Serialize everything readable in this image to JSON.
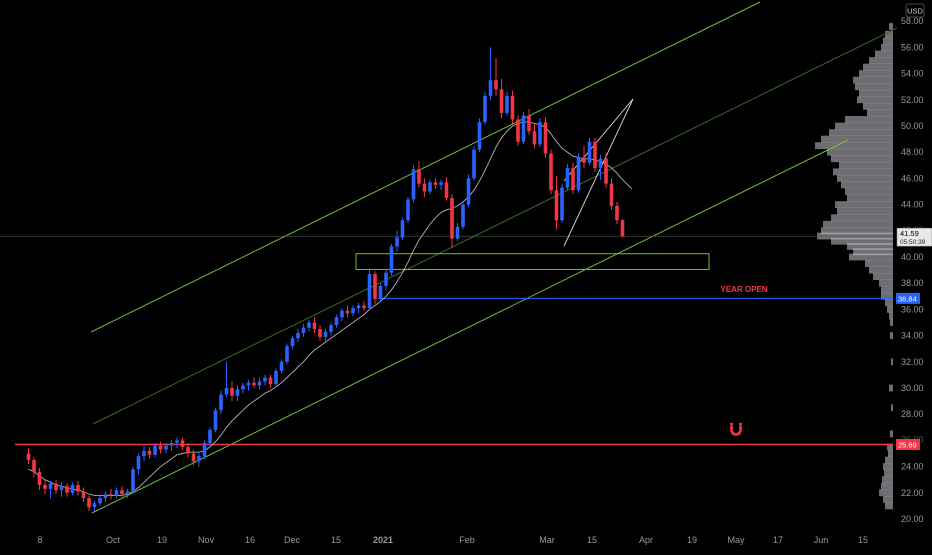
{
  "currency_label": "USD",
  "colors": {
    "background": "#000000",
    "up_candle": "#2962ff",
    "down_candle": "#f23645",
    "channel": "#6fbf3a",
    "midline": "#3b6b2a",
    "wedge": "#d9d9d9",
    "ma": "#d0d0d0",
    "year_open": "#2962ff",
    "support": "#f23645",
    "zone": "#6fbf3a",
    "volume_profile": "#c8c8d0",
    "axis_text": "#9598a1"
  },
  "price_axis": {
    "ticks": [
      "58.00",
      "56.00",
      "54.00",
      "52.00",
      "50.00",
      "48.00",
      "46.00",
      "44.00",
      "40.00",
      "38.00",
      "36.00",
      "34.00",
      "32.00",
      "30.00",
      "28.00",
      "24.00",
      "22.00",
      "20.00"
    ],
    "current_price": "41.59",
    "countdown": "05:50:39",
    "year_open_price": "36.84",
    "support_price": "25.69",
    "partial_tick_1": "42.00",
    "partial_tick_2": "26.00"
  },
  "time_axis": [
    "8",
    "Oct",
    "19",
    "Nov",
    "16",
    "Dec",
    "15",
    "2021",
    "Feb",
    "Mar",
    "15",
    "Apr",
    "19",
    "May",
    "17",
    "Jun",
    "15"
  ],
  "annotations": {
    "year_open_label": "YEAR OPEN"
  },
  "chart_data": {
    "type": "candlestick",
    "ylim": [
      19.5,
      59
    ],
    "series": [
      {
        "values": [
          [
            25.0,
            25.4,
            24.2,
            24.5
          ],
          [
            24.5,
            24.7,
            23.2,
            23.6
          ],
          [
            23.6,
            23.9,
            22.2,
            22.6
          ],
          [
            22.6,
            23.0,
            21.9,
            22.3
          ],
          [
            22.3,
            22.9,
            21.6,
            22.7
          ],
          [
            22.7,
            23.0,
            21.9,
            22.2
          ],
          [
            22.2,
            22.8,
            21.7,
            22.5
          ],
          [
            22.5,
            22.7,
            21.7,
            22.0
          ],
          [
            22.0,
            22.8,
            21.8,
            22.6
          ],
          [
            22.6,
            22.9,
            21.8,
            22.1
          ],
          [
            22.1,
            22.4,
            21.3,
            21.6
          ],
          [
            21.6,
            21.8,
            20.6,
            20.9
          ],
          [
            20.9,
            21.4,
            20.6,
            21.2
          ],
          [
            21.2,
            21.8,
            21.0,
            21.6
          ],
          [
            21.6,
            22.1,
            21.3,
            21.9
          ],
          [
            21.9,
            22.3,
            21.5,
            21.8
          ],
          [
            21.8,
            22.4,
            21.6,
            22.2
          ],
          [
            22.2,
            22.5,
            21.7,
            21.9
          ],
          [
            21.9,
            22.3,
            21.6,
            22.1
          ],
          [
            22.1,
            24.0,
            22.0,
            23.8
          ],
          [
            23.8,
            25.0,
            23.4,
            24.8
          ],
          [
            24.8,
            25.6,
            24.4,
            25.2
          ],
          [
            25.2,
            25.5,
            24.6,
            24.9
          ],
          [
            24.9,
            25.8,
            24.7,
            25.6
          ],
          [
            25.6,
            25.9,
            25.0,
            25.3
          ],
          [
            25.3,
            25.8,
            25.0,
            25.6
          ],
          [
            25.6,
            26.0,
            25.2,
            25.8
          ],
          [
            25.8,
            26.2,
            25.4,
            26.0
          ],
          [
            26.0,
            26.2,
            25.3,
            25.5
          ],
          [
            25.5,
            25.8,
            24.7,
            25.0
          ],
          [
            25.0,
            25.3,
            24.1,
            24.4
          ],
          [
            24.4,
            25.0,
            24.0,
            24.8
          ],
          [
            24.8,
            26.0,
            24.6,
            25.8
          ],
          [
            25.8,
            27.0,
            25.6,
            26.8
          ],
          [
            26.8,
            28.5,
            26.6,
            28.3
          ],
          [
            28.3,
            29.8,
            28.0,
            29.5
          ],
          [
            29.5,
            32.0,
            29.3,
            30.0
          ],
          [
            30.0,
            30.5,
            29.0,
            29.4
          ],
          [
            29.4,
            30.2,
            29.0,
            29.9
          ],
          [
            29.9,
            30.4,
            29.6,
            30.2
          ],
          [
            30.2,
            30.6,
            29.8,
            30.4
          ],
          [
            30.4,
            30.8,
            30.0,
            30.2
          ],
          [
            30.2,
            30.8,
            29.9,
            30.5
          ],
          [
            30.5,
            31.0,
            30.2,
            30.8
          ],
          [
            30.8,
            31.0,
            30.0,
            30.3
          ],
          [
            30.3,
            31.5,
            30.1,
            31.3
          ],
          [
            31.3,
            32.2,
            31.1,
            32.0
          ],
          [
            32.0,
            33.4,
            31.8,
            33.2
          ],
          [
            33.2,
            34.0,
            33.0,
            33.8
          ],
          [
            33.8,
            34.5,
            33.5,
            34.2
          ],
          [
            34.2,
            34.9,
            33.9,
            34.6
          ],
          [
            34.6,
            35.2,
            34.3,
            35.0
          ],
          [
            35.0,
            35.4,
            34.2,
            34.5
          ],
          [
            34.5,
            34.8,
            33.6,
            33.9
          ],
          [
            33.9,
            34.5,
            33.6,
            34.3
          ],
          [
            34.3,
            35.0,
            34.0,
            34.8
          ],
          [
            34.8,
            35.6,
            34.6,
            35.4
          ],
          [
            35.4,
            36.1,
            35.1,
            35.9
          ],
          [
            35.9,
            36.3,
            35.4,
            35.7
          ],
          [
            35.7,
            36.3,
            35.5,
            36.1
          ],
          [
            36.1,
            36.5,
            35.7,
            36.3
          ],
          [
            36.3,
            36.6,
            35.9,
            36.1
          ],
          [
            36.1,
            39.0,
            35.9,
            38.7
          ],
          [
            38.7,
            38.9,
            36.4,
            36.8
          ],
          [
            36.8,
            38.0,
            36.6,
            37.8
          ],
          [
            37.8,
            39.0,
            37.5,
            38.8
          ],
          [
            38.8,
            41.0,
            38.6,
            40.8
          ],
          [
            40.8,
            42.0,
            40.4,
            41.5
          ],
          [
            41.5,
            43.0,
            41.3,
            42.8
          ],
          [
            42.8,
            44.6,
            42.6,
            44.4
          ],
          [
            44.4,
            47.0,
            44.2,
            46.7
          ],
          [
            46.7,
            47.3,
            45.3,
            45.6
          ],
          [
            45.6,
            46.0,
            44.6,
            45.0
          ],
          [
            45.0,
            45.9,
            44.8,
            45.7
          ],
          [
            45.7,
            46.0,
            45.2,
            45.5
          ],
          [
            45.5,
            45.9,
            45.1,
            45.7
          ],
          [
            45.7,
            46.1,
            44.3,
            44.5
          ],
          [
            44.5,
            44.8,
            40.7,
            41.4
          ],
          [
            41.4,
            42.6,
            41.2,
            42.3
          ],
          [
            42.3,
            44.2,
            42.1,
            44.0
          ],
          [
            44.0,
            46.3,
            43.8,
            46.0
          ],
          [
            46.0,
            48.5,
            45.8,
            48.2
          ],
          [
            48.2,
            50.6,
            48.0,
            50.3
          ],
          [
            50.3,
            52.6,
            50.1,
            52.3
          ],
          [
            52.3,
            56.0,
            52.0,
            53.5
          ],
          [
            53.5,
            55.2,
            52.3,
            52.8
          ],
          [
            52.8,
            53.6,
            50.6,
            51.0
          ],
          [
            51.0,
            52.6,
            50.8,
            52.3
          ],
          [
            52.3,
            52.7,
            50.2,
            50.5
          ],
          [
            50.5,
            50.8,
            48.5,
            48.8
          ],
          [
            48.8,
            51.1,
            48.6,
            50.8
          ],
          [
            50.8,
            51.3,
            49.3,
            49.6
          ],
          [
            49.6,
            50.2,
            48.3,
            48.6
          ],
          [
            48.6,
            50.6,
            48.4,
            50.3
          ],
          [
            50.3,
            50.7,
            47.6,
            47.9
          ],
          [
            47.9,
            48.2,
            44.8,
            45.1
          ],
          [
            45.1,
            46.2,
            42.1,
            42.8
          ],
          [
            42.8,
            45.6,
            42.6,
            45.3
          ],
          [
            45.3,
            47.1,
            45.1,
            46.8
          ],
          [
            46.8,
            47.2,
            44.8,
            45.1
          ],
          [
            45.1,
            47.9,
            44.9,
            47.6
          ],
          [
            47.6,
            48.5,
            46.8,
            47.2
          ],
          [
            47.2,
            49.1,
            47.0,
            48.8
          ],
          [
            48.8,
            49.1,
            46.5,
            46.8
          ],
          [
            46.8,
            47.8,
            45.9,
            47.5
          ],
          [
            47.5,
            47.9,
            45.3,
            45.6
          ],
          [
            45.6,
            46.0,
            43.6,
            43.9
          ],
          [
            43.9,
            44.2,
            42.5,
            42.8
          ],
          [
            42.8,
            42.9,
            41.5,
            41.59
          ]
        ]
      }
    ],
    "moving_average": [
      23.8,
      23.6,
      23.3,
      23.0,
      22.8,
      22.6,
      22.5,
      22.4,
      22.3,
      22.2,
      22.1,
      21.9,
      21.8,
      21.8,
      21.8,
      21.8,
      21.8,
      21.8,
      21.9,
      22.1,
      22.4,
      22.8,
      23.2,
      23.6,
      24.0,
      24.3,
      24.6,
      24.9,
      25.0,
      25.1,
      25.1,
      25.1,
      25.2,
      25.5,
      25.9,
      26.4,
      27.0,
      27.5,
      27.9,
      28.3,
      28.7,
      29.0,
      29.3,
      29.6,
      29.8,
      30.1,
      30.4,
      30.8,
      31.2,
      31.6,
      32.0,
      32.5,
      32.9,
      33.2,
      33.5,
      33.8,
      34.1,
      34.4,
      34.7,
      35.0,
      35.3,
      35.6,
      36.0,
      36.3,
      36.6,
      37.0,
      37.5,
      38.1,
      38.8,
      39.6,
      40.5,
      41.3,
      41.9,
      42.5,
      43.0,
      43.4,
      43.6,
      43.7,
      43.9,
      44.2,
      44.6,
      45.1,
      45.8,
      46.6,
      47.5,
      48.4,
      49.1,
      49.6,
      50.0,
      50.2,
      50.3,
      50.3,
      50.2,
      50.1,
      49.9,
      49.4,
      48.8,
      48.3,
      48.0,
      47.7,
      47.6,
      47.5,
      47.5,
      47.4,
      47.3,
      47.1,
      46.8,
      46.4,
      45.9
    ],
    "levels": [
      {
        "price": 36.84,
        "label": "YEAR OPEN"
      },
      {
        "price": 25.69
      }
    ],
    "zone": [
      39.05,
      40.25
    ]
  }
}
